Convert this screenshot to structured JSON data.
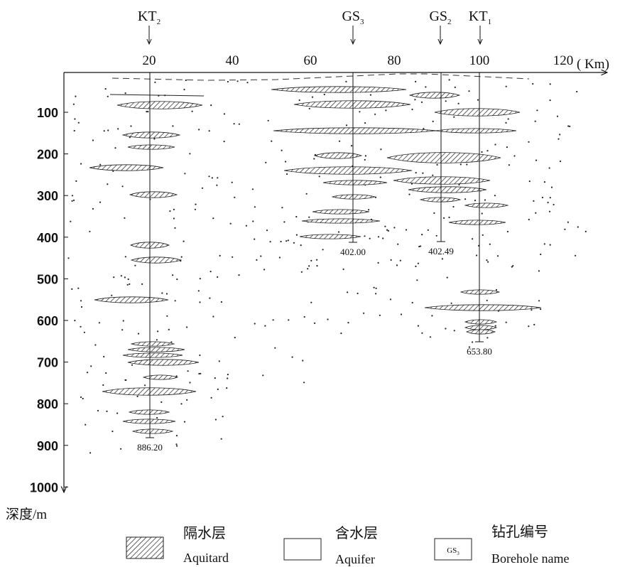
{
  "x_axis": {
    "ticks": [
      "20",
      "40",
      "60",
      "80",
      "100",
      "120"
    ],
    "unit": "( Km)"
  },
  "y_axis": {
    "ticks": [
      "100",
      "200",
      "300",
      "400",
      "500",
      "600",
      "700",
      "800",
      "900",
      "1000"
    ],
    "label": "深度/m"
  },
  "boreholes": [
    {
      "name": "KT",
      "subscript": "2",
      "depth": "886.20"
    },
    {
      "name": "GS",
      "subscript": "3",
      "depth": "402.00"
    },
    {
      "name": "GS",
      "subscript": "2",
      "depth": "402.49"
    },
    {
      "name": "KT",
      "subscript": "1",
      "depth": "653.80"
    }
  ],
  "legend": [
    {
      "cn": "隔水层",
      "en": "Aquitard"
    },
    {
      "cn": "含水层",
      "en": "Aquifer"
    },
    {
      "cn": "钻孔编号",
      "en": "Borehole name",
      "sample": "GS",
      "sample_sub": "3"
    }
  ]
}
